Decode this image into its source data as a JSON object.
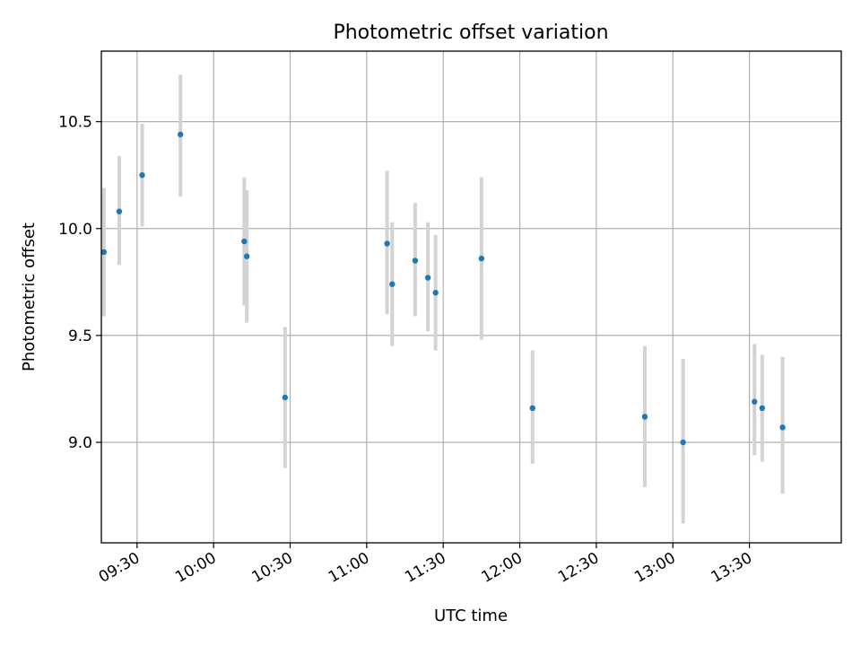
{
  "chart_data": {
    "type": "scatter",
    "title": "Photometric offset variation",
    "xlabel": "UTC time",
    "ylabel": "Photometric offset",
    "grid": true,
    "x_ticks": [
      "09:30",
      "10:00",
      "10:30",
      "11:00",
      "11:30",
      "12:00",
      "12:30",
      "13:00",
      "13:30"
    ],
    "y_ticks": [
      9.0,
      9.5,
      10.0,
      10.5
    ],
    "xlim": [
      "09:16",
      "14:06"
    ],
    "ylim": [
      8.53,
      10.83
    ],
    "colors": {
      "point": "#1f77b4",
      "errorbar": "#d3d3d3",
      "grid": "#b0b0b0"
    },
    "series": [
      {
        "points": [
          {
            "x": "09:17",
            "y": 9.89,
            "yerr_low": 9.59,
            "yerr_high": 10.19
          },
          {
            "x": "09:23",
            "y": 10.08,
            "yerr_low": 9.83,
            "yerr_high": 10.34
          },
          {
            "x": "09:32",
            "y": 10.25,
            "yerr_low": 10.01,
            "yerr_high": 10.49
          },
          {
            "x": "09:47",
            "y": 10.44,
            "yerr_low": 10.15,
            "yerr_high": 10.72
          },
          {
            "x": "10:12",
            "y": 9.94,
            "yerr_low": 9.64,
            "yerr_high": 10.24
          },
          {
            "x": "10:13",
            "y": 9.87,
            "yerr_low": 9.56,
            "yerr_high": 10.18
          },
          {
            "x": "10:28",
            "y": 9.21,
            "yerr_low": 8.88,
            "yerr_high": 9.54
          },
          {
            "x": "11:08",
            "y": 9.93,
            "yerr_low": 9.6,
            "yerr_high": 10.27
          },
          {
            "x": "11:10",
            "y": 9.74,
            "yerr_low": 9.45,
            "yerr_high": 10.03
          },
          {
            "x": "11:19",
            "y": 9.85,
            "yerr_low": 9.59,
            "yerr_high": 10.12
          },
          {
            "x": "11:24",
            "y": 9.77,
            "yerr_low": 9.52,
            "yerr_high": 10.03
          },
          {
            "x": "11:27",
            "y": 9.7,
            "yerr_low": 9.43,
            "yerr_high": 9.97
          },
          {
            "x": "11:45",
            "y": 9.86,
            "yerr_low": 9.48,
            "yerr_high": 10.24
          },
          {
            "x": "12:05",
            "y": 9.16,
            "yerr_low": 8.9,
            "yerr_high": 9.43
          },
          {
            "x": "12:49",
            "y": 9.12,
            "yerr_low": 8.79,
            "yerr_high": 9.45
          },
          {
            "x": "13:04",
            "y": 9.0,
            "yerr_low": 8.62,
            "yerr_high": 9.39
          },
          {
            "x": "13:32",
            "y": 9.19,
            "yerr_low": 8.94,
            "yerr_high": 9.46
          },
          {
            "x": "13:35",
            "y": 9.16,
            "yerr_low": 8.91,
            "yerr_high": 9.41
          },
          {
            "x": "13:43",
            "y": 9.07,
            "yerr_low": 8.76,
            "yerr_high": 9.4
          }
        ]
      }
    ]
  }
}
